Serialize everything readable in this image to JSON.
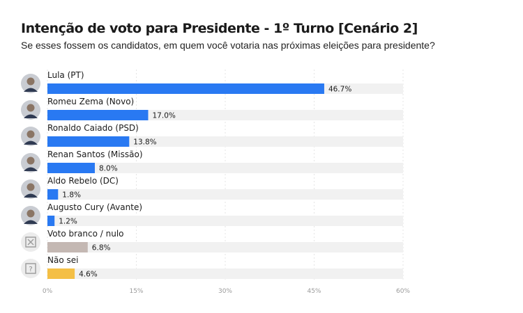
{
  "chart_data": {
    "type": "bar",
    "orientation": "horizontal",
    "title": "Intenção de voto para Presidente - 1º Turno [Cenário 2]",
    "subtitle": "Se esses fossem os candidatos, em quem você votaria nas próximas eleições para presidente?",
    "categories": [
      "Lula (PT)",
      "Romeu Zema (Novo)",
      "Ronaldo Caiado (PSD)",
      "Renan Santos (Missão)",
      "Aldo Rebelo (DC)",
      "Augusto Cury (Avante)",
      "Voto branco / nulo",
      "Não sei"
    ],
    "values": [
      46.7,
      17.0,
      13.8,
      8.0,
      1.8,
      1.2,
      6.8,
      4.6
    ],
    "value_labels": [
      "46.7%",
      "17.0%",
      "13.8%",
      "8.0%",
      "1.8%",
      "1.2%",
      "6.8%",
      "4.6%"
    ],
    "bar_colors": [
      "#2979f2",
      "#2979f2",
      "#2979f2",
      "#2979f2",
      "#2979f2",
      "#2979f2",
      "#c4b8b3",
      "#f4bf45"
    ],
    "avatar_icons": [
      "candidate-photo",
      "candidate-photo",
      "candidate-photo",
      "candidate-photo",
      "candidate-photo",
      "candidate-photo",
      "x-box-icon",
      "question-box-icon"
    ],
    "x_ticks": [
      0,
      15,
      30,
      45,
      60
    ],
    "x_tick_labels": [
      "0%",
      "15%",
      "30%",
      "45%",
      "60%"
    ],
    "xlim": [
      0,
      60
    ],
    "track_color": "#f1f1f1",
    "grid": true
  }
}
